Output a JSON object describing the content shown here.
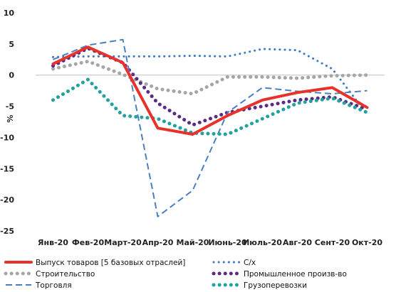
{
  "chart_data": {
    "type": "line",
    "title": "",
    "xlabel": "",
    "ylabel": "%",
    "ylim": [
      -25,
      10
    ],
    "yticks": [
      10,
      5,
      0,
      -5,
      -10,
      -15,
      -20,
      -25
    ],
    "grid": false,
    "legend_position": "bottom",
    "categories": [
      "Янв-20",
      "Фев-20",
      "Март-20",
      "Апр-20",
      "Май-20",
      "Июнь-20",
      "Июль-20",
      "Авг-20",
      "Сент-20",
      "Окт-20"
    ],
    "series": [
      {
        "name": "Выпуск товаров [5 базовых отраслей]",
        "color": "#e8312a",
        "style": "solid-thick",
        "values": [
          1.8,
          4.5,
          2.0,
          -8.5,
          -9.5,
          -6.5,
          -4.0,
          -2.8,
          -2.0,
          -5.2
        ]
      },
      {
        "name": "С/х",
        "color": "#3b78c9",
        "style": "dotted",
        "values": [
          2.9,
          3.0,
          3.0,
          3.0,
          3.1,
          3.0,
          4.2,
          4.0,
          1.0,
          -6.3
        ]
      },
      {
        "name": "Строительство",
        "color": "#a6a6a6",
        "style": "dotted-thick",
        "values": [
          1.0,
          2.2,
          0.1,
          -2.2,
          -3.0,
          -0.3,
          -0.3,
          -0.5,
          -0.1,
          0.0
        ]
      },
      {
        "name": "Промышленное произв-во",
        "color": "#5b2a86",
        "style": "dotted-thick",
        "values": [
          1.5,
          4.3,
          2.0,
          -4.5,
          -8.0,
          -6.0,
          -5.0,
          -4.0,
          -3.5,
          -5.5
        ]
      },
      {
        "name": "Торговля",
        "color": "#4a7fc0",
        "style": "dashed",
        "values": [
          2.5,
          4.8,
          5.7,
          -22.7,
          -18.5,
          -6.0,
          -2.0,
          -2.6,
          -3.0,
          -2.5
        ]
      },
      {
        "name": "Грузоперевозки",
        "color": "#23a0a0",
        "style": "dotted-thick",
        "values": [
          -4.0,
          -0.7,
          -6.5,
          -7.0,
          -9.3,
          -9.5,
          -7.0,
          -4.5,
          -3.7,
          -6.0
        ]
      }
    ]
  }
}
